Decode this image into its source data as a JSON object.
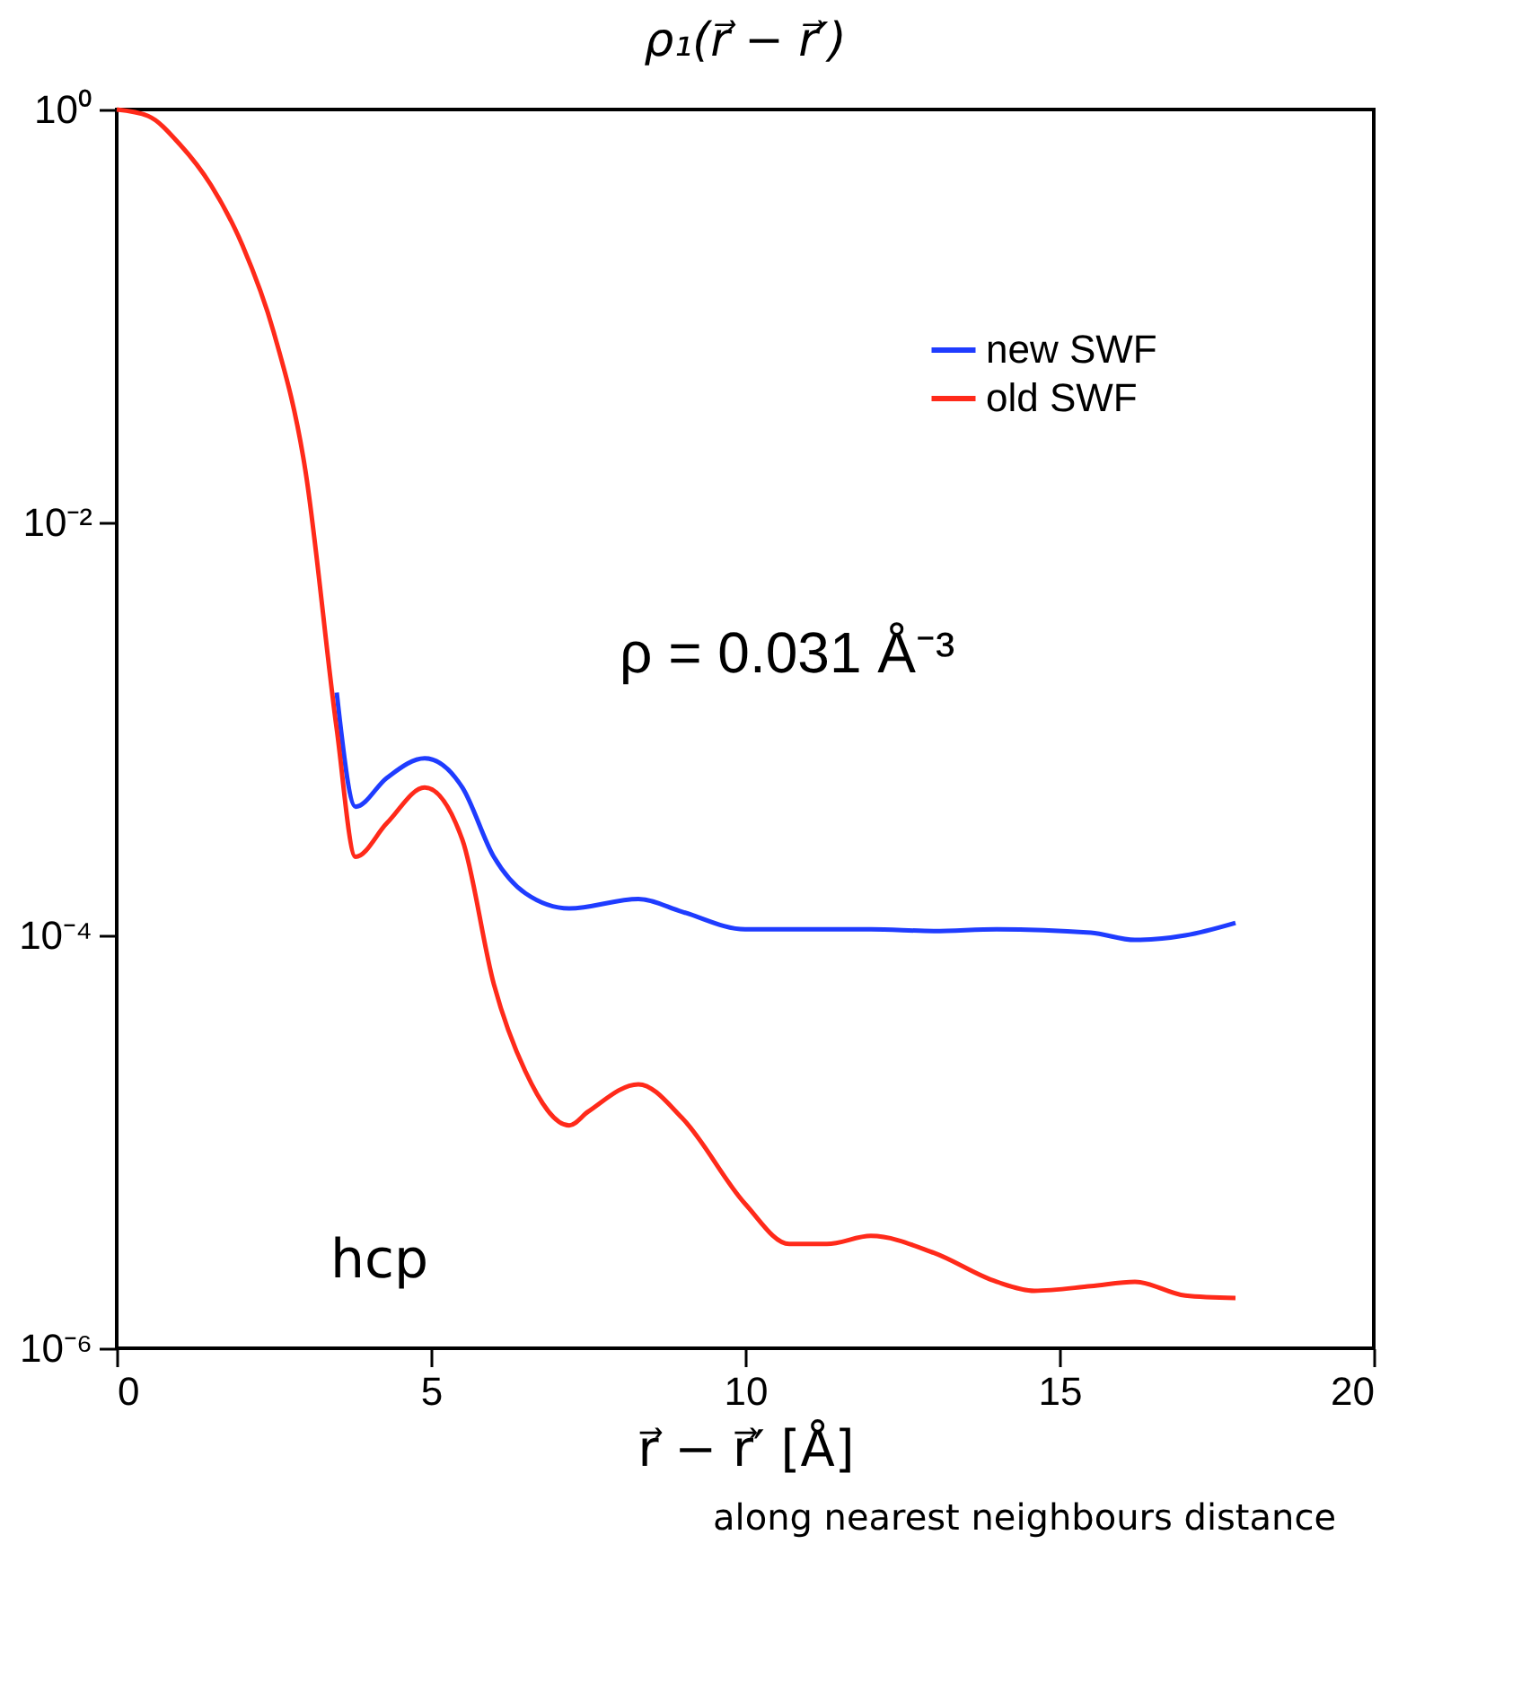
{
  "chart_data": {
    "type": "line",
    "title": "ρ₁(r⃗ − r⃗′)",
    "xlabel": "r⃗ − r⃗′  [Å]",
    "annotations": [
      "ρ = 0.031 Å⁻³",
      "hcp",
      "along nearest neighbours distance"
    ],
    "series": [
      {
        "name": "new SWF",
        "color": "#1f3cff",
        "x": [
          3.5,
          3.8,
          4.3,
          4.9,
          5.5,
          6,
          6.5,
          7.2,
          8.3,
          9,
          10,
          12,
          13,
          14,
          15.5,
          16.2,
          17,
          17.8
        ],
        "values": [
          0.0015,
          0.00042,
          0.00058,
          0.00072,
          0.00052,
          0.00024,
          0.00016,
          0.000135,
          0.00015,
          0.00013,
          0.000107,
          0.000107,
          0.000105,
          0.000107,
          0.000103,
          9.5e-05,
          0.0001,
          0.000115
        ]
      },
      {
        "name": "old SWF",
        "color": "#ff2a1a",
        "x": [
          0,
          0.5,
          1,
          1.5,
          2,
          2.5,
          3,
          3.5,
          3.8,
          4.3,
          4.9,
          5.5,
          6,
          6.5,
          7.2,
          7.5,
          8.3,
          9,
          10,
          10.7,
          11.3,
          12,
          13,
          14,
          14.6,
          15.5,
          16.2,
          17,
          17.8
        ],
        "values": [
          1,
          0.93,
          0.68,
          0.43,
          0.22,
          0.083,
          0.018,
          0.001,
          0.00024,
          0.00035,
          0.00052,
          0.00029,
          5.8e-05,
          2.2e-05,
          1.2e-05,
          1.4e-05,
          1.9e-05,
          1.3e-05,
          5e-06,
          3.2e-06,
          3.2e-06,
          3.5e-06,
          2.9e-06,
          2.1e-06,
          1.9e-06,
          2e-06,
          2.1e-06,
          1.8e-06,
          1.75e-06
        ]
      }
    ],
    "log": "y",
    "xlim": [
      0,
      20
    ],
    "xticks": [
      0,
      5,
      10,
      15,
      20
    ],
    "ylim": [
      1e-06,
      1
    ],
    "yticks": [
      {
        "value": 1e-06,
        "label": "10⁻⁶"
      },
      {
        "value": 0.0001,
        "label": "10⁻⁴"
      },
      {
        "value": 0.01,
        "label": "10⁻²"
      },
      {
        "value": 1,
        "label": "10⁰"
      }
    ],
    "legend": "top right",
    "grid": false
  }
}
